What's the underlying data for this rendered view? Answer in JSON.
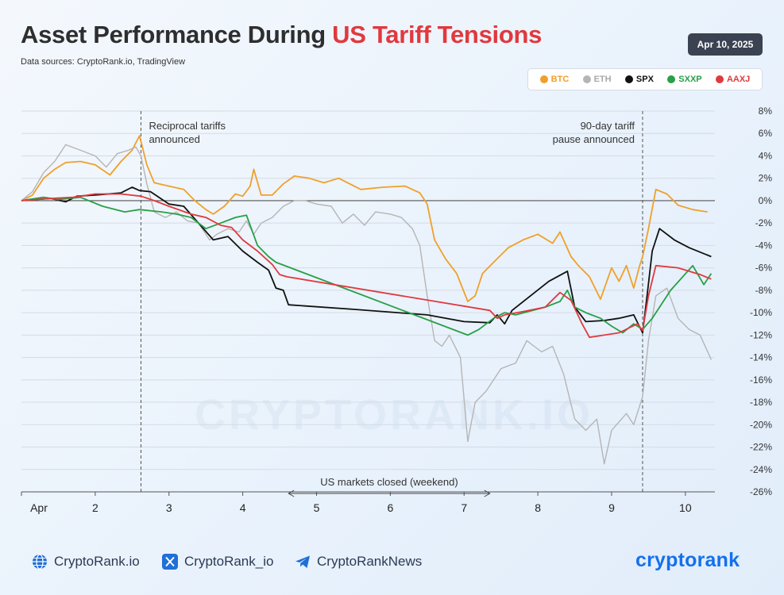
{
  "header": {
    "title_main": "Asset Performance During ",
    "title_highlight": "US Tariff Tensions",
    "sources": "Data sources: CryptoRank.io, TradingView",
    "date": "Apr 10, 2025"
  },
  "watermark": "CRYPTORANK.IO",
  "legend": [
    {
      "label": "BTC",
      "color": "#f0a02a"
    },
    {
      "label": "ETH",
      "color": "#b5b5b5"
    },
    {
      "label": "SPX",
      "color": "#111111"
    },
    {
      "label": "SXXP",
      "color": "#27a046"
    },
    {
      "label": "AAXJ",
      "color": "#e0393e"
    }
  ],
  "footer": {
    "website": "CryptoRank.io",
    "x_handle": "CryptoRank_io",
    "telegram": "CryptoRankNews",
    "brand": "cryptorank"
  },
  "chart_data": {
    "type": "line",
    "x_ticks": [
      "Apr",
      "2",
      "3",
      "4",
      "5",
      "6",
      "7",
      "8",
      "9",
      "10"
    ],
    "x_range": [
      1,
      10.4
    ],
    "ylim": [
      -26,
      8
    ],
    "y_ticks": [
      8,
      6,
      4,
      2,
      0,
      -2,
      -4,
      -6,
      -8,
      -10,
      -12,
      -14,
      -16,
      -18,
      -20,
      -22,
      -24,
      -26
    ],
    "y_tick_suffix": "%",
    "grid": true,
    "annotations": [
      {
        "type": "vline",
        "x": 2.62,
        "label": [
          "Reciprocal tariffs",
          "announced"
        ],
        "align": "left"
      },
      {
        "type": "vline",
        "x": 9.42,
        "label": [
          "90-day tariff",
          "pause announced"
        ],
        "align": "right"
      },
      {
        "type": "range",
        "x_start": 4.62,
        "x_end": 7.35,
        "y": -26,
        "label": "US markets closed (weekend)"
      }
    ],
    "series": [
      {
        "name": "BTC",
        "color": "#f0a02a",
        "points": [
          [
            1,
            0
          ],
          [
            1.15,
            0.5
          ],
          [
            1.3,
            2
          ],
          [
            1.45,
            2.8
          ],
          [
            1.6,
            3.4
          ],
          [
            1.8,
            3.5
          ],
          [
            2.0,
            3.2
          ],
          [
            2.2,
            2.3
          ],
          [
            2.35,
            3.5
          ],
          [
            2.5,
            4.5
          ],
          [
            2.6,
            5.8
          ],
          [
            2.7,
            3.2
          ],
          [
            2.8,
            1.6
          ],
          [
            3.0,
            1.3
          ],
          [
            3.2,
            1.0
          ],
          [
            3.35,
            0.0
          ],
          [
            3.5,
            -0.8
          ],
          [
            3.6,
            -1.2
          ],
          [
            3.75,
            -0.5
          ],
          [
            3.9,
            0.6
          ],
          [
            4.0,
            0.4
          ],
          [
            4.1,
            1.3
          ],
          [
            4.15,
            2.8
          ],
          [
            4.25,
            0.5
          ],
          [
            4.4,
            0.5
          ],
          [
            4.55,
            1.5
          ],
          [
            4.7,
            2.2
          ],
          [
            4.9,
            2.0
          ],
          [
            5.1,
            1.6
          ],
          [
            5.3,
            2.0
          ],
          [
            5.6,
            1.0
          ],
          [
            5.9,
            1.2
          ],
          [
            6.2,
            1.3
          ],
          [
            6.4,
            0.7
          ],
          [
            6.5,
            -0.3
          ],
          [
            6.6,
            -3.5
          ],
          [
            6.75,
            -5.2
          ],
          [
            6.9,
            -6.5
          ],
          [
            7.05,
            -9.0
          ],
          [
            7.15,
            -8.5
          ],
          [
            7.25,
            -6.5
          ],
          [
            7.4,
            -5.5
          ],
          [
            7.6,
            -4.2
          ],
          [
            7.8,
            -3.5
          ],
          [
            8.0,
            -3.0
          ],
          [
            8.2,
            -3.8
          ],
          [
            8.3,
            -2.8
          ],
          [
            8.45,
            -5.0
          ],
          [
            8.55,
            -5.8
          ],
          [
            8.7,
            -6.8
          ],
          [
            8.85,
            -8.8
          ],
          [
            9.0,
            -6.0
          ],
          [
            9.1,
            -7.2
          ],
          [
            9.2,
            -5.8
          ],
          [
            9.3,
            -7.8
          ],
          [
            9.38,
            -5.8
          ],
          [
            9.42,
            -5.0
          ],
          [
            9.5,
            -2.5
          ],
          [
            9.6,
            1.0
          ],
          [
            9.75,
            0.6
          ],
          [
            9.9,
            -0.4
          ],
          [
            10.1,
            -0.8
          ],
          [
            10.3,
            -1.0
          ]
        ]
      },
      {
        "name": "ETH",
        "color": "#b5b5b5",
        "points": [
          [
            1,
            0
          ],
          [
            1.15,
            0.8
          ],
          [
            1.3,
            2.5
          ],
          [
            1.45,
            3.5
          ],
          [
            1.6,
            5.0
          ],
          [
            1.8,
            4.5
          ],
          [
            2.0,
            4.0
          ],
          [
            2.15,
            3.0
          ],
          [
            2.3,
            4.2
          ],
          [
            2.45,
            4.5
          ],
          [
            2.55,
            4.8
          ],
          [
            2.62,
            4.0
          ],
          [
            2.7,
            1.5
          ],
          [
            2.8,
            -1.0
          ],
          [
            2.95,
            -1.5
          ],
          [
            3.1,
            -1.0
          ],
          [
            3.25,
            -1.8
          ],
          [
            3.4,
            -2.0
          ],
          [
            3.55,
            -3.5
          ],
          [
            3.65,
            -3.0
          ],
          [
            3.8,
            -2.5
          ],
          [
            3.95,
            -2.8
          ],
          [
            4.05,
            -1.8
          ],
          [
            4.15,
            -3.0
          ],
          [
            4.25,
            -2.0
          ],
          [
            4.4,
            -1.5
          ],
          [
            4.55,
            -0.5
          ],
          [
            4.7,
            0.0
          ],
          [
            4.85,
            0.0
          ],
          [
            5.0,
            -0.3
          ],
          [
            5.2,
            -0.5
          ],
          [
            5.35,
            -2.0
          ],
          [
            5.5,
            -1.2
          ],
          [
            5.65,
            -2.2
          ],
          [
            5.8,
            -1.0
          ],
          [
            6.0,
            -1.2
          ],
          [
            6.15,
            -1.5
          ],
          [
            6.3,
            -2.5
          ],
          [
            6.4,
            -4.0
          ],
          [
            6.5,
            -8.5
          ],
          [
            6.6,
            -12.5
          ],
          [
            6.7,
            -13.0
          ],
          [
            6.8,
            -12.0
          ],
          [
            6.95,
            -14.0
          ],
          [
            7.05,
            -21.5
          ],
          [
            7.15,
            -18.0
          ],
          [
            7.3,
            -17.0
          ],
          [
            7.5,
            -15.0
          ],
          [
            7.7,
            -14.5
          ],
          [
            7.85,
            -12.5
          ],
          [
            7.95,
            -13.0
          ],
          [
            8.05,
            -13.5
          ],
          [
            8.2,
            -13.0
          ],
          [
            8.35,
            -15.5
          ],
          [
            8.5,
            -19.5
          ],
          [
            8.65,
            -20.5
          ],
          [
            8.8,
            -19.5
          ],
          [
            8.9,
            -23.5
          ],
          [
            9.0,
            -20.5
          ],
          [
            9.2,
            -19.0
          ],
          [
            9.3,
            -20.0
          ],
          [
            9.42,
            -17.5
          ],
          [
            9.5,
            -12.5
          ],
          [
            9.6,
            -8.5
          ],
          [
            9.75,
            -7.8
          ],
          [
            9.9,
            -10.5
          ],
          [
            10.05,
            -11.5
          ],
          [
            10.2,
            -12.0
          ],
          [
            10.35,
            -14.2
          ]
        ]
      },
      {
        "name": "SPX",
        "color": "#111111",
        "points": [
          [
            1,
            0
          ],
          [
            1.4,
            0.2
          ],
          [
            1.6,
            -0.1
          ],
          [
            1.75,
            0.4
          ],
          [
            2.0,
            0.5
          ],
          [
            2.35,
            0.7
          ],
          [
            2.5,
            1.2
          ],
          [
            2.6,
            0.9
          ],
          [
            2.75,
            0.8
          ],
          [
            3.0,
            -0.3
          ],
          [
            3.2,
            -0.5
          ],
          [
            3.4,
            -2.0
          ],
          [
            3.6,
            -3.5
          ],
          [
            3.8,
            -3.2
          ],
          [
            4.0,
            -4.5
          ],
          [
            4.2,
            -5.5
          ],
          [
            4.35,
            -6.2
          ],
          [
            4.45,
            -7.8
          ],
          [
            4.55,
            -8.0
          ],
          [
            4.62,
            -9.3
          ],
          [
            5.5,
            -9.7
          ],
          [
            6.5,
            -10.2
          ],
          [
            7.0,
            -10.8
          ],
          [
            7.35,
            -10.9
          ],
          [
            7.45,
            -10.2
          ],
          [
            7.55,
            -11.0
          ],
          [
            7.65,
            -9.8
          ],
          [
            7.9,
            -8.5
          ],
          [
            8.15,
            -7.2
          ],
          [
            8.4,
            -6.3
          ],
          [
            8.5,
            -9.5
          ],
          [
            8.65,
            -10.8
          ],
          [
            8.9,
            -10.7
          ],
          [
            9.1,
            -10.5
          ],
          [
            9.3,
            -10.2
          ],
          [
            9.42,
            -11.8
          ],
          [
            9.48,
            -8.5
          ],
          [
            9.55,
            -4.5
          ],
          [
            9.65,
            -2.5
          ],
          [
            9.85,
            -3.5
          ],
          [
            10.05,
            -4.2
          ],
          [
            10.35,
            -5.0
          ]
        ]
      },
      {
        "name": "SXXP",
        "color": "#27a046",
        "points": [
          [
            1,
            0
          ],
          [
            1.3,
            0.3
          ],
          [
            1.5,
            0.1
          ],
          [
            1.8,
            0.3
          ],
          [
            2.1,
            -0.5
          ],
          [
            2.4,
            -1.0
          ],
          [
            2.6,
            -0.8
          ],
          [
            2.9,
            -1.0
          ],
          [
            3.1,
            -1.2
          ],
          [
            3.3,
            -1.5
          ],
          [
            3.5,
            -2.5
          ],
          [
            3.7,
            -2.0
          ],
          [
            3.9,
            -1.5
          ],
          [
            4.05,
            -1.3
          ],
          [
            4.2,
            -4.0
          ],
          [
            4.35,
            -5.0
          ],
          [
            4.45,
            -5.5
          ],
          [
            7.05,
            -12.0
          ],
          [
            7.2,
            -11.5
          ],
          [
            7.4,
            -10.5
          ],
          [
            7.55,
            -10.0
          ],
          [
            7.7,
            -10.2
          ],
          [
            8.1,
            -9.5
          ],
          [
            8.3,
            -9.0
          ],
          [
            8.4,
            -8.0
          ],
          [
            8.5,
            -9.5
          ],
          [
            8.65,
            -10.0
          ],
          [
            8.85,
            -10.5
          ],
          [
            9.0,
            -11.2
          ],
          [
            9.15,
            -11.8
          ],
          [
            9.3,
            -11.0
          ],
          [
            9.42,
            -11.5
          ],
          [
            9.55,
            -10.5
          ],
          [
            9.8,
            -8.0
          ],
          [
            10.1,
            -5.8
          ],
          [
            10.25,
            -7.5
          ],
          [
            10.35,
            -6.5
          ]
        ]
      },
      {
        "name": "AAXJ",
        "color": "#e0393e",
        "points": [
          [
            1,
            0
          ],
          [
            1.4,
            0.2
          ],
          [
            1.7,
            0.3
          ],
          [
            2.0,
            0.6
          ],
          [
            2.35,
            0.6
          ],
          [
            2.62,
            0.4
          ],
          [
            2.8,
            0.0
          ],
          [
            3.0,
            -0.5
          ],
          [
            3.3,
            -1.2
          ],
          [
            3.5,
            -1.5
          ],
          [
            3.7,
            -2.2
          ],
          [
            3.85,
            -2.4
          ],
          [
            4.0,
            -3.5
          ],
          [
            4.2,
            -4.5
          ],
          [
            4.4,
            -5.7
          ],
          [
            4.5,
            -6.6
          ],
          [
            4.6,
            -6.8
          ],
          [
            7.35,
            -9.8
          ],
          [
            7.45,
            -10.5
          ],
          [
            7.55,
            -10.2
          ],
          [
            7.8,
            -9.9
          ],
          [
            8.1,
            -9.5
          ],
          [
            8.3,
            -8.2
          ],
          [
            8.45,
            -8.9
          ],
          [
            8.6,
            -11.0
          ],
          [
            8.7,
            -12.2
          ],
          [
            9.1,
            -11.8
          ],
          [
            9.35,
            -11.0
          ],
          [
            9.42,
            -11.6
          ],
          [
            9.5,
            -8.5
          ],
          [
            9.6,
            -5.8
          ],
          [
            9.9,
            -6.0
          ],
          [
            10.2,
            -6.6
          ],
          [
            10.35,
            -7.0
          ]
        ]
      }
    ]
  }
}
